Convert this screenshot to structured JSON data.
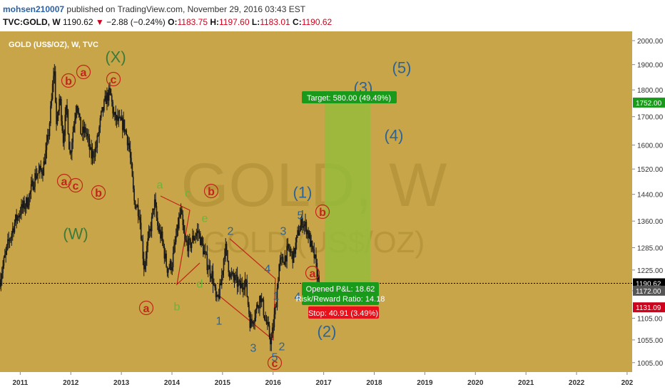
{
  "header": {
    "author": "mohsen210007",
    "published_text": "published on TradingView.com, November 29, 2016 03:43 EST",
    "symbol": "TVC:GOLD, W",
    "last": "1190.62",
    "change": "−2.88 (−0.24%)",
    "o_label": "O:",
    "o_value": "1183.75",
    "h_label": "H:",
    "h_value": "1197.60",
    "l_label": "L:",
    "l_value": "1183.01",
    "c_label": "C:",
    "c_value": "1190.62"
  },
  "chart": {
    "title": "GOLD (US$/OZ), W, TVC",
    "watermark_main": "GOLD, W",
    "watermark_sub": "GOLD (US$/OZ)",
    "background": "#c8a549",
    "candle_color": "#1a1a1a",
    "price_line_label": "1190.62",
    "price_labels": [
      {
        "text": "1752.00",
        "color": "#1a9a1a"
      },
      {
        "text": "1190.62",
        "color": "#000000"
      },
      {
        "text": "1172.00",
        "color": "#555555"
      },
      {
        "text": "1131.09",
        "color": "#d0021b"
      }
    ],
    "position": {
      "target_label": "Target: 580.00 (49.49%)",
      "stop_label": "Stop: 40.91 (3.49%)",
      "pnl_label": "Opened P&L: 18.62",
      "rr_label": "Risk/Reward Ratio: 14.18",
      "target_color": "#1a9a1a",
      "stop_color": "#e8101a"
    },
    "waves": {
      "x_major": "(X)",
      "w_major": "(W)",
      "one": "(1)",
      "two": "(2)",
      "three": "(3)",
      "four": "(4)",
      "five": "(5)",
      "circ_a": "a",
      "circ_b": "b",
      "circ_c": "c",
      "g_a": "a",
      "g_b": "b",
      "g_c": "c",
      "g_d": "d",
      "g_e": "e",
      "n1": "1",
      "n2": "2",
      "n3": "3",
      "n4": "4",
      "n5": "5"
    }
  },
  "chart_data": {
    "type": "candlestick",
    "title": "GOLD (US$/OZ), W, TVC",
    "x_ticks": [
      "2011",
      "2012",
      "2013",
      "2014",
      "2015",
      "2016",
      "2017",
      "2018",
      "2019",
      "2020",
      "2021",
      "2022",
      "202"
    ],
    "y_ticks": [
      1005,
      1055,
      1105,
      1172,
      1225,
      1285,
      1360,
      1440,
      1520,
      1600,
      1700,
      1800,
      1900,
      2000
    ],
    "y_tick_labels": [
      "1005.00",
      "1055.00",
      "1105.00",
      "1172.00",
      "1225.00",
      "1285.00",
      "1360.00",
      "1440.00",
      "1520.00",
      "1600.00",
      "1700.00",
      "1800.00",
      "1900.00",
      "2000.00"
    ],
    "ylim": [
      985,
      2040
    ],
    "xlim": [
      2010.6,
      2023.1
    ],
    "log_scale": true,
    "price_path": [
      [
        2010.6,
        1200
      ],
      [
        2010.75,
        1290
      ],
      [
        2010.9,
        1360
      ],
      [
        2011.0,
        1390
      ],
      [
        2011.15,
        1420
      ],
      [
        2011.3,
        1500
      ],
      [
        2011.45,
        1520
      ],
      [
        2011.55,
        1620
      ],
      [
        2011.62,
        1760
      ],
      [
        2011.67,
        1900
      ],
      [
        2011.72,
        1650
      ],
      [
        2011.78,
        1780
      ],
      [
        2011.85,
        1620
      ],
      [
        2011.92,
        1740
      ],
      [
        2011.98,
        1560
      ],
      [
        2012.05,
        1660
      ],
      [
        2012.12,
        1760
      ],
      [
        2012.2,
        1640
      ],
      [
        2012.3,
        1650
      ],
      [
        2012.4,
        1560
      ],
      [
        2012.5,
        1590
      ],
      [
        2012.6,
        1700
      ],
      [
        2012.7,
        1770
      ],
      [
        2012.78,
        1790
      ],
      [
        2012.85,
        1700
      ],
      [
        2012.95,
        1680
      ],
      [
        2013.05,
        1670
      ],
      [
        2013.15,
        1600
      ],
      [
        2013.25,
        1420
      ],
      [
        2013.35,
        1390
      ],
      [
        2013.45,
        1230
      ],
      [
        2013.5,
        1280
      ],
      [
        2013.6,
        1360
      ],
      [
        2013.65,
        1420
      ],
      [
        2013.72,
        1340
      ],
      [
        2013.8,
        1310
      ],
      [
        2013.9,
        1230
      ],
      [
        2014.0,
        1240
      ],
      [
        2014.1,
        1330
      ],
      [
        2014.17,
        1390
      ],
      [
        2014.25,
        1300
      ],
      [
        2014.35,
        1290
      ],
      [
        2014.45,
        1320
      ],
      [
        2014.52,
        1330
      ],
      [
        2014.6,
        1290
      ],
      [
        2014.7,
        1240
      ],
      [
        2014.8,
        1210
      ],
      [
        2014.88,
        1140
      ],
      [
        2014.96,
        1180
      ],
      [
        2015.05,
        1290
      ],
      [
        2015.15,
        1210
      ],
      [
        2015.25,
        1200
      ],
      [
        2015.35,
        1180
      ],
      [
        2015.45,
        1200
      ],
      [
        2015.55,
        1090
      ],
      [
        2015.65,
        1120
      ],
      [
        2015.75,
        1160
      ],
      [
        2015.85,
        1100
      ],
      [
        2015.96,
        1050
      ],
      [
        2016.05,
        1130
      ],
      [
        2016.12,
        1240
      ],
      [
        2016.2,
        1250
      ],
      [
        2016.3,
        1280
      ],
      [
        2016.4,
        1260
      ],
      [
        2016.5,
        1330
      ],
      [
        2016.58,
        1360
      ],
      [
        2016.66,
        1340
      ],
      [
        2016.72,
        1310
      ],
      [
        2016.78,
        1270
      ],
      [
        2016.82,
        1260
      ],
      [
        2016.86,
        1220
      ],
      [
        2016.91,
        1190
      ]
    ],
    "current_price": 1190.62,
    "target_price": 1752.0,
    "stop_price": 1131.09
  }
}
